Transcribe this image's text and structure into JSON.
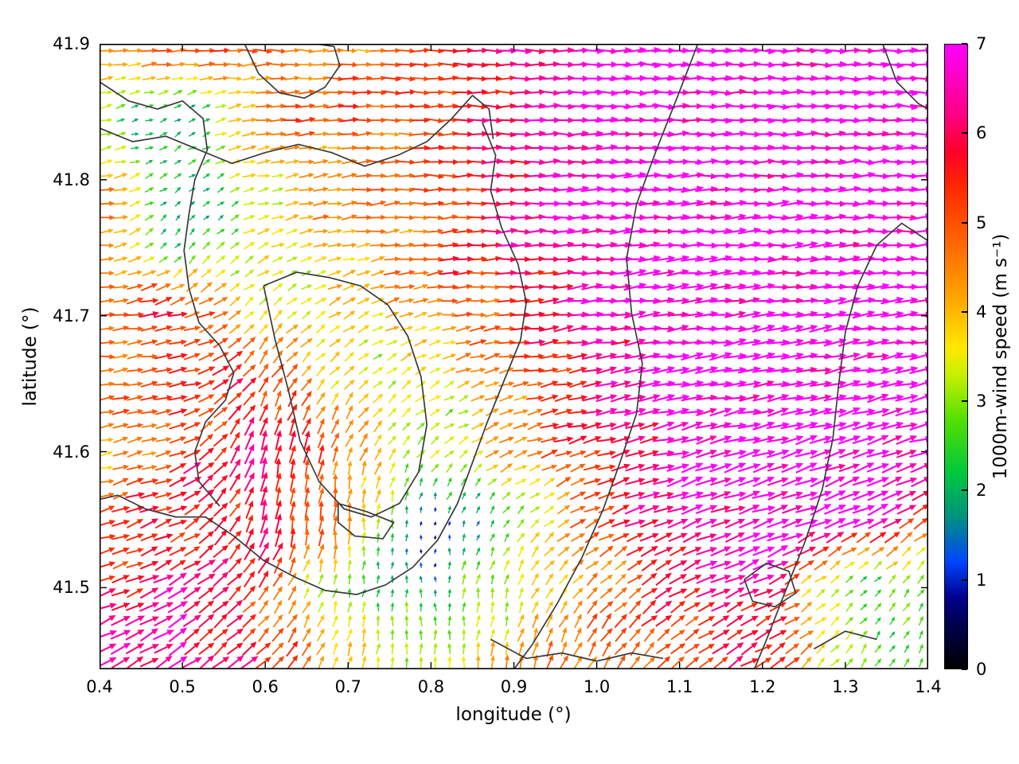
{
  "figure": {
    "background": "#ffffff"
  },
  "chart_data": {
    "type": "quiver",
    "title": "",
    "xlabel": "longitude (°)",
    "ylabel": "latitude (°)",
    "xlim": [
      0.4,
      1.4
    ],
    "ylim": [
      41.44,
      41.9
    ],
    "x_ticks": [
      "0.4",
      "0.5",
      "0.6",
      "0.7",
      "0.8",
      "0.9",
      "1.0",
      "1.1",
      "1.2",
      "1.3",
      "1.4"
    ],
    "x_tick_values": [
      0.4,
      0.5,
      0.6,
      0.7,
      0.8,
      0.9,
      1.0,
      1.1,
      1.2,
      1.3,
      1.4
    ],
    "y_ticks": [
      "41.5",
      "41.6",
      "41.7",
      "41.8",
      "41.9"
    ],
    "y_tick_values": [
      41.5,
      41.6,
      41.7,
      41.8,
      41.9
    ],
    "grid_on": false,
    "arrow_color_encodes": "1000m wind speed (m/s)",
    "arrow_direction_encodes": "wind direction (mostly eastward)",
    "colorbar": {
      "label": "1000m-wind speed (m s⁻¹)",
      "min": 0,
      "max": 7,
      "ticks": [
        "0",
        "1",
        "2",
        "3",
        "4",
        "5",
        "6",
        "7"
      ],
      "tick_values": [
        0,
        1,
        2,
        3,
        4,
        5,
        6,
        7
      ],
      "stops": [
        [
          0.0,
          "#000000"
        ],
        [
          0.5,
          "#00004f"
        ],
        [
          0.8,
          "#00008f"
        ],
        [
          1.2,
          "#0045ff"
        ],
        [
          1.7,
          "#00927f"
        ],
        [
          2.2,
          "#00c83c"
        ],
        [
          2.8,
          "#55e000"
        ],
        [
          3.3,
          "#c8f000"
        ],
        [
          3.6,
          "#ffe800"
        ],
        [
          4.2,
          "#ffa000"
        ],
        [
          4.8,
          "#ff6400"
        ],
        [
          5.4,
          "#ff2800"
        ],
        [
          5.8,
          "#ff0028"
        ],
        [
          6.2,
          "#ff0080"
        ],
        [
          7.0,
          "#ff00ff"
        ]
      ]
    },
    "grid_lon": [
      0.4,
      0.5,
      0.6,
      0.7,
      0.8,
      0.9,
      1.0,
      1.1,
      1.2,
      1.3,
      1.4
    ],
    "grid_lat": [
      41.9,
      41.85,
      41.8,
      41.75,
      41.7,
      41.65,
      41.6,
      41.55,
      41.5,
      41.45
    ],
    "speed_grid": [
      [
        4.8,
        5.2,
        5.0,
        4.6,
        5.2,
        6.2,
        7.0,
        7.0,
        7.0,
        7.0,
        7.0
      ],
      [
        2.5,
        2.0,
        4.8,
        5.0,
        5.2,
        6.0,
        7.0,
        7.0,
        7.0,
        7.0,
        7.0
      ],
      [
        4.5,
        1.5,
        3.8,
        4.6,
        5.0,
        6.2,
        7.0,
        7.0,
        7.0,
        7.0,
        7.0
      ],
      [
        5.0,
        2.2,
        3.2,
        4.4,
        5.0,
        6.0,
        6.8,
        7.0,
        7.0,
        7.0,
        7.0
      ],
      [
        4.6,
        5.8,
        3.6,
        3.4,
        4.6,
        5.4,
        6.6,
        7.0,
        7.0,
        7.0,
        7.0
      ],
      [
        4.6,
        5.2,
        5.6,
        3.8,
        3.0,
        4.8,
        6.2,
        7.0,
        7.0,
        7.0,
        7.0
      ],
      [
        4.2,
        5.4,
        6.0,
        4.6,
        3.2,
        4.2,
        5.8,
        6.8,
        7.0,
        7.0,
        7.0
      ],
      [
        5.2,
        5.6,
        6.0,
        4.4,
        0.7,
        2.6,
        5.0,
        6.6,
        7.0,
        7.0,
        5.5
      ],
      [
        5.6,
        6.2,
        5.2,
        2.6,
        1.6,
        3.6,
        4.6,
        5.6,
        6.6,
        2.4,
        2.2
      ],
      [
        6.2,
        6.6,
        5.4,
        3.8,
        3.4,
        4.2,
        4.8,
        5.2,
        5.6,
        3.0,
        2.6
      ]
    ],
    "direction_grid_deg": [
      [
        0,
        0,
        0,
        0,
        0,
        0,
        0,
        0,
        0,
        0,
        0
      ],
      [
        15,
        25,
        5,
        0,
        0,
        0,
        0,
        0,
        0,
        0,
        0
      ],
      [
        5,
        40,
        10,
        5,
        0,
        0,
        3,
        3,
        3,
        3,
        3
      ],
      [
        0,
        55,
        25,
        10,
        5,
        3,
        5,
        5,
        5,
        5,
        5
      ],
      [
        0,
        15,
        45,
        30,
        10,
        5,
        8,
        8,
        8,
        8,
        8
      ],
      [
        5,
        10,
        60,
        50,
        30,
        12,
        10,
        10,
        10,
        12,
        12
      ],
      [
        10,
        20,
        80,
        70,
        45,
        20,
        15,
        15,
        15,
        18,
        18
      ],
      [
        15,
        25,
        75,
        90,
        90,
        50,
        25,
        20,
        20,
        25,
        30
      ],
      [
        20,
        30,
        50,
        80,
        95,
        70,
        45,
        30,
        25,
        40,
        55
      ],
      [
        25,
        35,
        45,
        75,
        90,
        80,
        60,
        40,
        30,
        50,
        70
      ]
    ],
    "arrow_cols": 58,
    "arrow_rows": 45,
    "contour_color": "#3a3a3a",
    "contours": [
      [
        [
          0.4,
          41.872
        ],
        [
          0.435,
          41.858
        ],
        [
          0.47,
          41.852
        ],
        [
          0.5,
          41.858
        ],
        [
          0.525,
          41.845
        ],
        [
          0.53,
          41.822
        ],
        [
          0.515,
          41.8
        ],
        [
          0.508,
          41.775
        ],
        [
          0.502,
          41.748
        ],
        [
          0.508,
          41.72
        ],
        [
          0.52,
          41.695
        ],
        [
          0.545,
          41.678
        ],
        [
          0.562,
          41.658
        ],
        [
          0.552,
          41.638
        ],
        [
          0.528,
          41.622
        ],
        [
          0.515,
          41.6
        ],
        [
          0.52,
          41.578
        ],
        [
          0.545,
          41.56
        ]
      ],
      [
        [
          0.575,
          41.9
        ],
        [
          0.592,
          41.878
        ],
        [
          0.617,
          41.864
        ],
        [
          0.647,
          41.86
        ],
        [
          0.672,
          41.868
        ],
        [
          0.69,
          41.884
        ],
        [
          0.683,
          41.898
        ],
        [
          0.66,
          41.9
        ]
      ],
      [
        [
          0.4,
          41.838
        ],
        [
          0.44,
          41.828
        ],
        [
          0.48,
          41.832
        ],
        [
          0.52,
          41.822
        ],
        [
          0.56,
          41.812
        ],
        [
          0.6,
          41.82
        ],
        [
          0.64,
          41.826
        ],
        [
          0.68,
          41.82
        ],
        [
          0.72,
          41.81
        ],
        [
          0.76,
          41.818
        ],
        [
          0.795,
          41.828
        ],
        [
          0.825,
          41.845
        ],
        [
          0.85,
          41.862
        ],
        [
          0.87,
          41.852
        ],
        [
          0.875,
          41.83
        ]
      ],
      [
        [
          0.862,
          41.842
        ],
        [
          0.878,
          41.818
        ],
        [
          0.872,
          41.792
        ],
        [
          0.885,
          41.765
        ],
        [
          0.905,
          41.738
        ],
        [
          0.915,
          41.71
        ],
        [
          0.908,
          41.682
        ],
        [
          0.888,
          41.652
        ],
        [
          0.868,
          41.622
        ],
        [
          0.85,
          41.592
        ],
        [
          0.832,
          41.562
        ],
        [
          0.808,
          41.535
        ],
        [
          0.778,
          41.515
        ],
        [
          0.745,
          41.502
        ],
        [
          0.71,
          41.495
        ],
        [
          0.672,
          41.498
        ],
        [
          0.635,
          41.508
        ],
        [
          0.598,
          41.52
        ],
        [
          0.562,
          41.538
        ],
        [
          0.528,
          41.552
        ],
        [
          0.492,
          41.552
        ],
        [
          0.455,
          41.558
        ],
        [
          0.422,
          41.568
        ],
        [
          0.4,
          41.565
        ]
      ],
      [
        [
          0.598,
          41.722
        ],
        [
          0.638,
          41.732
        ],
        [
          0.678,
          41.728
        ],
        [
          0.715,
          41.722
        ],
        [
          0.748,
          41.708
        ],
        [
          0.772,
          41.685
        ],
        [
          0.788,
          41.655
        ],
        [
          0.795,
          41.62
        ],
        [
          0.785,
          41.585
        ],
        [
          0.762,
          41.562
        ],
        [
          0.728,
          41.552
        ],
        [
          0.695,
          41.558
        ],
        [
          0.665,
          41.578
        ],
        [
          0.642,
          41.608
        ],
        [
          0.628,
          41.645
        ],
        [
          0.612,
          41.682
        ],
        [
          0.598,
          41.722
        ]
      ],
      [
        [
          0.688,
          41.562
        ],
        [
          0.722,
          41.556
        ],
        [
          0.755,
          41.548
        ],
        [
          0.742,
          41.536
        ],
        [
          0.708,
          41.538
        ],
        [
          0.688,
          41.548
        ],
        [
          0.688,
          41.562
        ]
      ],
      [
        [
          1.122,
          41.9
        ],
        [
          1.098,
          41.862
        ],
        [
          1.072,
          41.822
        ],
        [
          1.048,
          41.782
        ],
        [
          1.036,
          41.742
        ],
        [
          1.042,
          41.702
        ],
        [
          1.055,
          41.665
        ],
        [
          1.048,
          41.628
        ],
        [
          1.028,
          41.592
        ],
        [
          1.008,
          41.558
        ],
        [
          0.982,
          41.522
        ],
        [
          0.952,
          41.488
        ],
        [
          0.922,
          41.458
        ],
        [
          0.9,
          41.44
        ]
      ],
      [
        [
          1.4,
          41.755
        ],
        [
          1.368,
          41.768
        ],
        [
          1.338,
          41.752
        ],
        [
          1.315,
          41.722
        ],
        [
          1.3,
          41.688
        ],
        [
          1.292,
          41.65
        ],
        [
          1.285,
          41.61
        ],
        [
          1.272,
          41.572
        ],
        [
          1.252,
          41.535
        ],
        [
          1.228,
          41.498
        ],
        [
          1.205,
          41.462
        ],
        [
          1.19,
          41.44
        ]
      ],
      [
        [
          1.345,
          41.9
        ],
        [
          1.362,
          41.872
        ],
        [
          1.388,
          41.856
        ],
        [
          1.4,
          41.852
        ]
      ],
      [
        [
          1.178,
          41.506
        ],
        [
          1.205,
          41.518
        ],
        [
          1.232,
          41.512
        ],
        [
          1.24,
          41.496
        ],
        [
          1.215,
          41.486
        ],
        [
          1.188,
          41.49
        ],
        [
          1.178,
          41.506
        ]
      ],
      [
        [
          0.872,
          41.462
        ],
        [
          0.915,
          41.448
        ],
        [
          0.958,
          41.452
        ],
        [
          1.0,
          41.446
        ],
        [
          1.042,
          41.452
        ],
        [
          1.08,
          41.448
        ]
      ],
      [
        [
          1.262,
          41.455
        ],
        [
          1.3,
          41.468
        ],
        [
          1.338,
          41.462
        ]
      ]
    ]
  }
}
